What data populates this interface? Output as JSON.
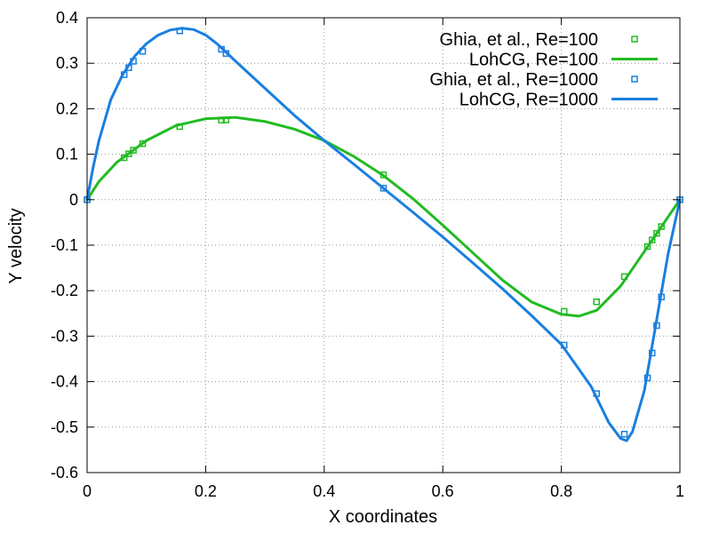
{
  "chart_data": {
    "type": "line",
    "xlabel": "X coordinates",
    "ylabel": "Y velocity",
    "xlim": [
      0,
      1
    ],
    "ylim": [
      -0.6,
      0.4
    ],
    "x_ticks": [
      "0",
      "0.2",
      "0.4",
      "0.6",
      "0.8",
      "1"
    ],
    "y_ticks": [
      "0.4",
      "0.3",
      "0.2",
      "0.1",
      "0",
      "-0.1",
      "-0.2",
      "-0.3",
      "-0.4",
      "-0.5",
      "-0.6"
    ],
    "grid": true,
    "legend_position": "top-right",
    "series": [
      {
        "name": "Ghia, et al., Re=100",
        "kind": "markers",
        "marker": "square",
        "color": "#22bb22",
        "points": [
          [
            0.0,
            0.0
          ],
          [
            0.0625,
            0.0923
          ],
          [
            0.0703,
            0.1009
          ],
          [
            0.0781,
            0.1089
          ],
          [
            0.0938,
            0.1232
          ],
          [
            0.1563,
            0.1608
          ],
          [
            0.2266,
            0.1751
          ],
          [
            0.2344,
            0.1753
          ],
          [
            0.5,
            0.0545
          ],
          [
            0.8047,
            -0.2453
          ],
          [
            0.8594,
            -0.2245
          ],
          [
            0.9063,
            -0.1691
          ],
          [
            0.9453,
            -0.1031
          ],
          [
            0.9531,
            -0.0886
          ],
          [
            0.9609,
            -0.0739
          ],
          [
            0.9688,
            -0.0591
          ],
          [
            1.0,
            0.0
          ]
        ]
      },
      {
        "name": "LohCG, Re=100",
        "kind": "line",
        "color": "#22bb22",
        "points": [
          [
            0.0,
            0.0
          ],
          [
            0.02,
            0.04
          ],
          [
            0.05,
            0.082
          ],
          [
            0.1,
            0.13
          ],
          [
            0.15,
            0.163
          ],
          [
            0.2,
            0.178
          ],
          [
            0.25,
            0.181
          ],
          [
            0.3,
            0.172
          ],
          [
            0.35,
            0.155
          ],
          [
            0.4,
            0.13
          ],
          [
            0.45,
            0.095
          ],
          [
            0.5,
            0.053
          ],
          [
            0.55,
            0.002
          ],
          [
            0.6,
            -0.056
          ],
          [
            0.65,
            -0.116
          ],
          [
            0.7,
            -0.176
          ],
          [
            0.75,
            -0.225
          ],
          [
            0.8,
            -0.252
          ],
          [
            0.83,
            -0.256
          ],
          [
            0.86,
            -0.243
          ],
          [
            0.9,
            -0.19
          ],
          [
            0.95,
            -0.095
          ],
          [
            1.0,
            0.0
          ]
        ]
      },
      {
        "name": "Ghia, et al., Re=1000",
        "kind": "markers",
        "marker": "square",
        "color": "#1a7fe0",
        "points": [
          [
            0.0,
            0.0
          ],
          [
            0.0625,
            0.2749
          ],
          [
            0.0703,
            0.2902
          ],
          [
            0.0781,
            0.3044
          ],
          [
            0.0938,
            0.3263
          ],
          [
            0.1563,
            0.3712
          ],
          [
            0.2266,
            0.3307
          ],
          [
            0.2344,
            0.3215
          ],
          [
            0.5,
            0.0253
          ],
          [
            0.8047,
            -0.3197
          ],
          [
            0.8594,
            -0.4263
          ],
          [
            0.9063,
            -0.5155
          ],
          [
            0.9453,
            -0.3919
          ],
          [
            0.9531,
            -0.3371
          ],
          [
            0.9609,
            -0.2767
          ],
          [
            0.9688,
            -0.2139
          ],
          [
            1.0,
            0.0
          ]
        ]
      },
      {
        "name": "LohCG, Re=1000",
        "kind": "line",
        "color": "#1a7fe0",
        "points": [
          [
            0.0,
            0.0
          ],
          [
            0.01,
            0.07
          ],
          [
            0.02,
            0.13
          ],
          [
            0.04,
            0.22
          ],
          [
            0.06,
            0.275
          ],
          [
            0.08,
            0.315
          ],
          [
            0.1,
            0.343
          ],
          [
            0.12,
            0.362
          ],
          [
            0.14,
            0.373
          ],
          [
            0.16,
            0.377
          ],
          [
            0.18,
            0.374
          ],
          [
            0.2,
            0.362
          ],
          [
            0.22,
            0.342
          ],
          [
            0.25,
            0.305
          ],
          [
            0.3,
            0.245
          ],
          [
            0.35,
            0.185
          ],
          [
            0.4,
            0.13
          ],
          [
            0.45,
            0.078
          ],
          [
            0.5,
            0.025
          ],
          [
            0.55,
            -0.028
          ],
          [
            0.6,
            -0.082
          ],
          [
            0.65,
            -0.138
          ],
          [
            0.7,
            -0.195
          ],
          [
            0.75,
            -0.255
          ],
          [
            0.8,
            -0.318
          ],
          [
            0.85,
            -0.41
          ],
          [
            0.88,
            -0.49
          ],
          [
            0.9,
            -0.525
          ],
          [
            0.91,
            -0.53
          ],
          [
            0.92,
            -0.51
          ],
          [
            0.94,
            -0.42
          ],
          [
            0.96,
            -0.27
          ],
          [
            0.98,
            -0.12
          ],
          [
            1.0,
            0.0
          ]
        ]
      }
    ]
  }
}
